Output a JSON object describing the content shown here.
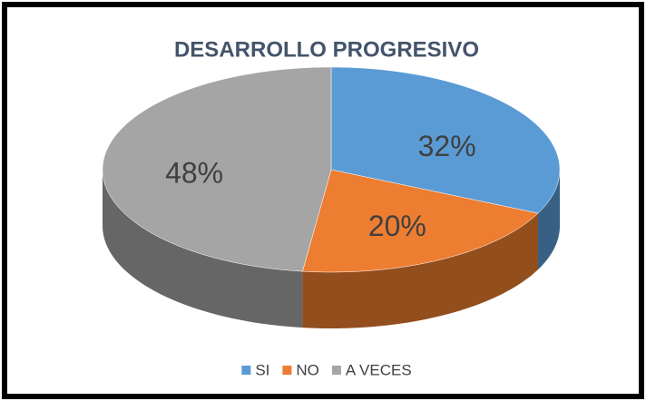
{
  "chart_data": {
    "type": "pie",
    "title": "DESARROLLO PROGRESIVO",
    "categories": [
      "SI",
      "NO",
      "A VECES"
    ],
    "values": [
      32,
      20,
      48
    ],
    "value_labels": [
      "32%",
      "20%",
      "48%"
    ],
    "colors": [
      "#5b9bd5",
      "#ed7d31",
      "#a5a5a5"
    ],
    "legend": "bottom"
  }
}
